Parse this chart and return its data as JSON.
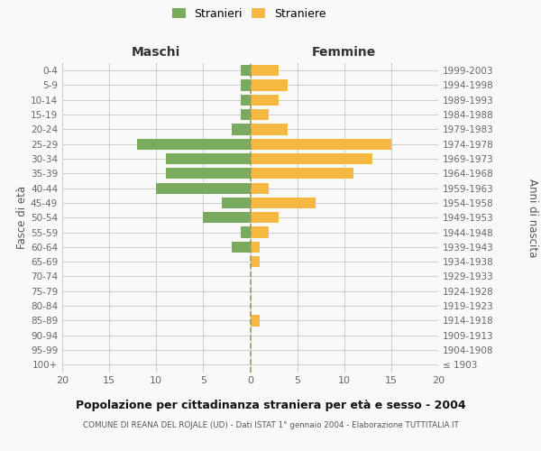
{
  "age_groups": [
    "100+",
    "95-99",
    "90-94",
    "85-89",
    "80-84",
    "75-79",
    "70-74",
    "65-69",
    "60-64",
    "55-59",
    "50-54",
    "45-49",
    "40-44",
    "35-39",
    "30-34",
    "25-29",
    "20-24",
    "15-19",
    "10-14",
    "5-9",
    "0-4"
  ],
  "birth_years": [
    "≤ 1903",
    "1904-1908",
    "1909-1913",
    "1914-1918",
    "1919-1923",
    "1924-1928",
    "1929-1933",
    "1934-1938",
    "1939-1943",
    "1944-1948",
    "1949-1953",
    "1954-1958",
    "1959-1963",
    "1964-1968",
    "1969-1973",
    "1974-1978",
    "1979-1983",
    "1984-1988",
    "1989-1993",
    "1994-1998",
    "1999-2003"
  ],
  "males": [
    0,
    0,
    0,
    0,
    0,
    0,
    0,
    0,
    2,
    1,
    5,
    3,
    10,
    9,
    9,
    12,
    2,
    1,
    1,
    1,
    1
  ],
  "females": [
    0,
    0,
    0,
    1,
    0,
    0,
    0,
    1,
    1,
    2,
    3,
    7,
    2,
    11,
    13,
    15,
    4,
    2,
    3,
    4,
    3
  ],
  "male_color": "#7aaa5e",
  "female_color": "#f5b942",
  "grid_color": "#cccccc",
  "background_color": "#f9f9f9",
  "title": "Popolazione per cittadinanza straniera per età e sesso - 2004",
  "subtitle": "COMUNE DI REANA DEL ROJALE (UD) - Dati ISTAT 1° gennaio 2004 - Elaborazione TUTTITALIA.IT",
  "ylabel_left": "Fasce di età",
  "ylabel_right": "Anni di nascita",
  "xlabel_left": "Maschi",
  "xlabel_right": "Femmine",
  "legend_male": "Stranieri",
  "legend_female": "Straniere",
  "xlim": 20,
  "bar_height": 0.75
}
